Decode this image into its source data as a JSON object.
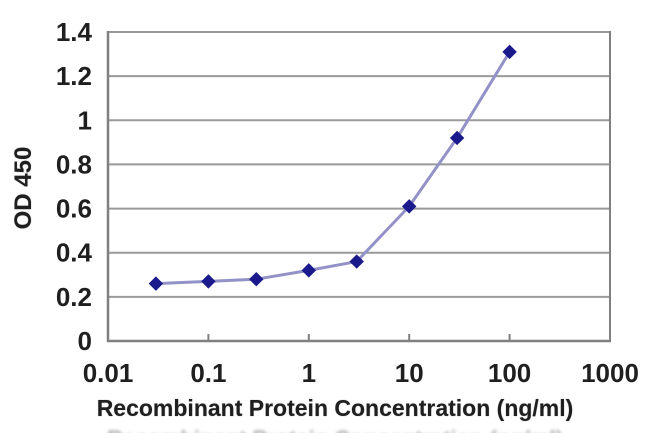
{
  "chart_data": {
    "type": "line",
    "x": [
      0.03,
      0.1,
      0.3,
      1,
      3,
      10,
      30,
      100
    ],
    "series": [
      {
        "name": "OD 450",
        "values": [
          0.26,
          0.27,
          0.28,
          0.32,
          0.36,
          0.61,
          0.92,
          1.31
        ]
      }
    ],
    "title": "",
    "xlabel": "Recombinant Protein Concentration (ng/ml)",
    "ylabel": "OD 450",
    "x_scale": "log",
    "xlim": [
      0.01,
      1000
    ],
    "ylim": [
      0,
      1.4
    ],
    "x_ticks": [
      0.01,
      0.1,
      1,
      10,
      100,
      1000
    ],
    "x_tick_labels": [
      "0.01",
      "0.1",
      "1",
      "10",
      "100",
      "1000"
    ],
    "y_ticks": [
      0,
      0.2,
      0.4,
      0.6,
      0.8,
      1,
      1.2,
      1.4
    ],
    "y_tick_labels": [
      "0",
      "0.2",
      "0.4",
      "0.6",
      "0.8",
      "1",
      "1.2",
      "1.4"
    ],
    "grid": "horizontal-only",
    "legend": "none",
    "marker_shape": "diamond",
    "colors": {
      "line": "#9292c8",
      "marker": "#1a1a8c",
      "grid": "#999999",
      "axis": "#808080",
      "text": "#1f1f1f",
      "background": "#ffffff"
    }
  }
}
